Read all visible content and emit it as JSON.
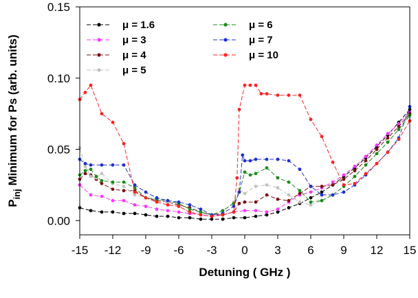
{
  "chart_data": {
    "type": "line",
    "xlabel": "Detuning ( GHz )",
    "ylabel_main": "P",
    "ylabel_sub": "inj",
    "ylabel_rest": " Minimum for Ps (arb. units)",
    "xlim": [
      -15,
      15
    ],
    "ylim": [
      -0.01,
      0.15
    ],
    "x_ticks": [
      -15,
      -12,
      -9,
      -6,
      -3,
      0,
      3,
      6,
      9,
      12,
      15
    ],
    "y_ticks": [
      0.0,
      0.05,
      0.1,
      0.15
    ],
    "x_tick_labels": [
      "-15",
      "-12",
      "-9",
      "-6",
      "-3",
      "0",
      "3",
      "6",
      "9",
      "12",
      "15"
    ],
    "y_tick_labels": [
      "0.00",
      "0.05",
      "0.10",
      "0.15"
    ],
    "grid": false,
    "legend_position": "top-left",
    "line_style": "dashed",
    "marker": "circle",
    "series": [
      {
        "name": "μ = 1.6",
        "color": "#000000",
        "x": [
          -15,
          -14,
          -13,
          -12,
          -11,
          -10,
          -9,
          -8,
          -7,
          -6,
          -5,
          -4,
          -3,
          -2,
          -1,
          0,
          1,
          2,
          3,
          4,
          5,
          6,
          7,
          8,
          9,
          10,
          11,
          12,
          13,
          14,
          15
        ],
        "y": [
          0.009,
          0.007,
          0.006,
          0.006,
          0.005,
          0.005,
          0.004,
          0.003,
          0.003,
          0.002,
          0.002,
          0.001,
          0.001,
          0.001,
          0.002,
          0.002,
          0.003,
          0.004,
          0.006,
          0.009,
          0.012,
          0.016,
          0.02,
          0.025,
          0.031,
          0.037,
          0.044,
          0.052,
          0.06,
          0.069,
          0.078
        ]
      },
      {
        "name": "μ = 3",
        "color": "#ff33ff",
        "x": [
          -15,
          -14,
          -13,
          -12,
          -11,
          -10,
          -9,
          -8,
          -7,
          -6,
          -5,
          -4,
          -3,
          -2,
          -1,
          0,
          1,
          2,
          3,
          4,
          5,
          6,
          7,
          8,
          9,
          10,
          11,
          12,
          13,
          14,
          15
        ],
        "y": [
          0.025,
          0.018,
          0.017,
          0.014,
          0.014,
          0.011,
          0.01,
          0.008,
          0.007,
          0.006,
          0.005,
          0.004,
          0.003,
          0.004,
          0.006,
          0.007,
          0.007,
          0.006,
          0.008,
          0.013,
          0.018,
          0.02,
          0.023,
          0.027,
          0.032,
          0.038,
          0.045,
          0.053,
          0.061,
          0.068,
          0.076
        ]
      },
      {
        "name": "μ = 4",
        "color": "#7a1010",
        "x": [
          -15,
          -14.5,
          -14,
          -13.5,
          -13,
          -12,
          -11,
          -10,
          -9,
          -8,
          -7,
          -6,
          -5,
          -4,
          -3,
          -2,
          -1,
          -0.5,
          0,
          1,
          2,
          3,
          4,
          5,
          6,
          7,
          8,
          9,
          10,
          11,
          12,
          13,
          14,
          15
        ],
        "y": [
          0.029,
          0.033,
          0.032,
          0.029,
          0.026,
          0.022,
          0.021,
          0.021,
          0.016,
          0.014,
          0.013,
          0.011,
          0.009,
          0.006,
          0.004,
          0.004,
          0.006,
          0.012,
          0.013,
          0.013,
          0.018,
          0.015,
          0.014,
          0.019,
          0.024,
          0.024,
          0.025,
          0.029,
          0.035,
          0.042,
          0.05,
          0.058,
          0.066,
          0.075
        ]
      },
      {
        "name": "μ = 5",
        "color": "#c0c0c0",
        "x": [
          -15,
          -14.5,
          -14,
          -13.5,
          -13,
          -12,
          -11,
          -10,
          -9,
          -8,
          -7,
          -6,
          -5,
          -4,
          -3,
          -2,
          -1,
          -0.5,
          0,
          1,
          2,
          3,
          4,
          5,
          6,
          7,
          8,
          9,
          10,
          11,
          12,
          13,
          14,
          15
        ],
        "y": [
          0.051,
          0.038,
          0.031,
          0.03,
          0.033,
          0.026,
          0.024,
          0.018,
          0.016,
          0.015,
          0.013,
          0.01,
          0.006,
          0.005,
          0.004,
          0.006,
          0.013,
          0.022,
          0.019,
          0.024,
          0.025,
          0.023,
          0.018,
          0.013,
          0.011,
          0.014,
          0.018,
          0.024,
          0.031,
          0.039,
          0.047,
          0.055,
          0.064,
          0.073
        ]
      },
      {
        "name": "μ = 6",
        "color": "#1a8a1a",
        "x": [
          -15,
          -14.5,
          -14,
          -13.5,
          -13,
          -12,
          -11,
          -10,
          -9,
          -8,
          -7,
          -6,
          -5,
          -4,
          -3,
          -2,
          -1,
          -0.5,
          0,
          0.5,
          1,
          2,
          3,
          4,
          5,
          6,
          7,
          8,
          9,
          10,
          11,
          12,
          13,
          14,
          15
        ],
        "y": [
          0.032,
          0.035,
          0.036,
          0.031,
          0.028,
          0.027,
          0.027,
          0.023,
          0.016,
          0.015,
          0.014,
          0.012,
          0.008,
          0.006,
          0.004,
          0.007,
          0.012,
          0.02,
          0.034,
          0.032,
          0.033,
          0.037,
          0.03,
          0.027,
          0.021,
          0.013,
          0.014,
          0.018,
          0.024,
          0.031,
          0.039,
          0.047,
          0.055,
          0.064,
          0.074
        ]
      },
      {
        "name": "μ = 7",
        "color": "#1f2fd0",
        "x": [
          -15,
          -14.5,
          -14,
          -13,
          -12,
          -11,
          -10,
          -9,
          -8,
          -7,
          -6,
          -5,
          -4,
          -3,
          -2,
          -1,
          -0.5,
          -0.2,
          0,
          0.5,
          1,
          2,
          3,
          4,
          5,
          6,
          7,
          8,
          9,
          10,
          11,
          12,
          13,
          14,
          15
        ],
        "y": [
          0.043,
          0.04,
          0.039,
          0.039,
          0.039,
          0.039,
          0.025,
          0.02,
          0.016,
          0.014,
          0.013,
          0.011,
          0.008,
          0.004,
          0.005,
          0.01,
          0.02,
          0.046,
          0.042,
          0.042,
          0.043,
          0.043,
          0.043,
          0.042,
          0.036,
          0.024,
          0.018,
          0.018,
          0.02,
          0.025,
          0.032,
          0.04,
          0.048,
          0.058,
          0.08
        ]
      },
      {
        "name": "μ = 10",
        "color": "#ff2020",
        "x": [
          -15,
          -14.5,
          -14,
          -13,
          -12,
          -11,
          -10,
          -9,
          -8,
          -7,
          -6,
          -5,
          -4,
          -3,
          -2,
          -1,
          -0.7,
          -0.5,
          0,
          0.5,
          1,
          1.5,
          2,
          3,
          4,
          5,
          6,
          7,
          8,
          9,
          10,
          11,
          12,
          13,
          14,
          15
        ],
        "y": [
          0.085,
          0.09,
          0.095,
          0.075,
          0.069,
          0.054,
          0.02,
          0.016,
          0.013,
          0.011,
          0.01,
          0.006,
          0.004,
          0.003,
          0.004,
          0.006,
          0.03,
          0.078,
          0.095,
          0.095,
          0.095,
          0.089,
          0.089,
          0.088,
          0.088,
          0.088,
          0.071,
          0.059,
          0.041,
          0.025,
          0.026,
          0.033,
          0.04,
          0.048,
          0.057,
          0.07
        ]
      }
    ]
  }
}
